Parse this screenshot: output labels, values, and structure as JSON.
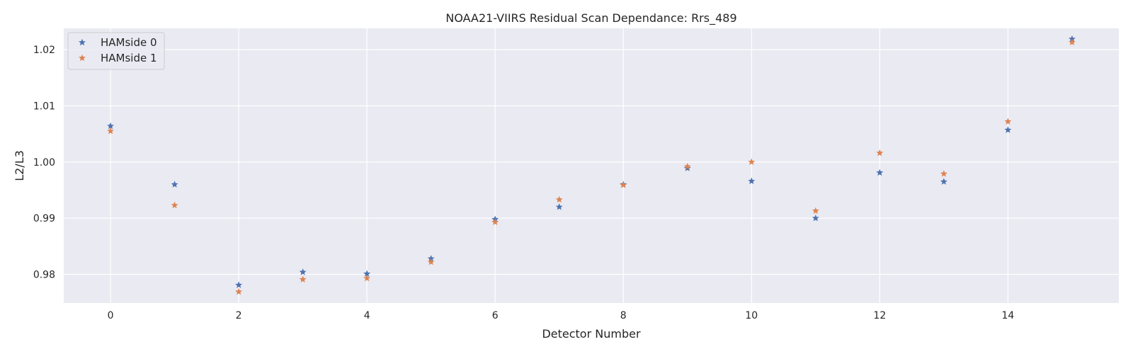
{
  "chart_data": {
    "type": "scatter",
    "title": "NOAA21-VIIRS Residual Scan Dependance: Rrs_489",
    "xlabel": "Detector Number",
    "ylabel": "L2/L3",
    "xlim": [
      -0.73,
      15.73
    ],
    "ylim": [
      0.9749,
      1.0238
    ],
    "xticks": [
      0,
      2,
      4,
      6,
      8,
      10,
      12,
      14
    ],
    "yticks": [
      0.98,
      0.99,
      1.0,
      1.01,
      1.02
    ],
    "ytick_labels": [
      "0.98",
      "0.99",
      "1.00",
      "1.01",
      "1.02"
    ],
    "grid": true,
    "legend_position": "top-left",
    "marker": "star",
    "colors": {
      "background": "#EAEAF2",
      "grid": "#FFFFFF"
    },
    "x": [
      0,
      1,
      2,
      3,
      4,
      5,
      6,
      7,
      8,
      9,
      10,
      11,
      12,
      13,
      14,
      15
    ],
    "series": [
      {
        "name": "HAMside 0",
        "color": "#4C72B0",
        "values": [
          1.0064,
          0.996,
          0.9781,
          0.9804,
          0.9801,
          0.9828,
          0.9898,
          0.992,
          0.996,
          0.9989,
          0.9966,
          0.99,
          0.9981,
          0.9965,
          1.0057,
          1.0219
        ]
      },
      {
        "name": "HAMside 1",
        "color": "#DD8452",
        "values": [
          1.0055,
          0.9923,
          0.9769,
          0.9791,
          0.9793,
          0.9822,
          0.9893,
          0.9933,
          0.9959,
          0.9992,
          1.0,
          0.9913,
          1.0016,
          0.9979,
          1.0072,
          1.0213
        ]
      }
    ]
  }
}
